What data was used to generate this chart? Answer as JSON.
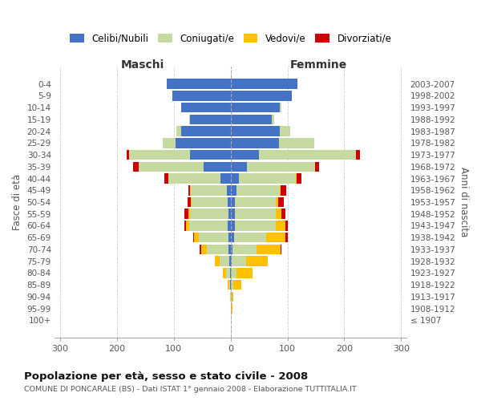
{
  "age_groups": [
    "100+",
    "95-99",
    "90-94",
    "85-89",
    "80-84",
    "75-79",
    "70-74",
    "65-69",
    "60-64",
    "55-59",
    "50-54",
    "45-49",
    "40-44",
    "35-39",
    "30-34",
    "25-29",
    "20-24",
    "15-19",
    "10-14",
    "5-9",
    "0-4"
  ],
  "birth_years": [
    "≤ 1907",
    "1908-1912",
    "1913-1917",
    "1918-1922",
    "1923-1927",
    "1928-1932",
    "1933-1937",
    "1938-1942",
    "1943-1947",
    "1948-1952",
    "1953-1957",
    "1958-1962",
    "1963-1967",
    "1968-1972",
    "1973-1977",
    "1978-1982",
    "1983-1987",
    "1988-1992",
    "1993-1997",
    "1998-2002",
    "2003-2007"
  ],
  "colors": {
    "celibi": "#4472c4",
    "coniugati": "#c5d9a0",
    "vedovi": "#ffc000",
    "divorziati": "#cc0000"
  },
  "males_celibi": [
    0,
    0,
    0,
    1,
    1,
    2,
    4,
    4,
    5,
    4,
    5,
    7,
    18,
    47,
    72,
    97,
    87,
    72,
    87,
    103,
    112
  ],
  "males_coniugati": [
    0,
    0,
    1,
    2,
    7,
    18,
    38,
    52,
    68,
    68,
    63,
    63,
    92,
    115,
    107,
    22,
    8,
    1,
    0,
    0,
    0
  ],
  "males_vedovi": [
    0,
    0,
    0,
    2,
    5,
    8,
    10,
    8,
    5,
    3,
    2,
    1,
    0,
    0,
    0,
    0,
    0,
    0,
    0,
    0,
    0
  ],
  "males_divorziati": [
    0,
    0,
    0,
    0,
    0,
    0,
    2,
    2,
    3,
    6,
    6,
    4,
    7,
    9,
    4,
    0,
    0,
    0,
    0,
    0,
    0
  ],
  "females_celibi": [
    0,
    0,
    0,
    1,
    1,
    2,
    3,
    6,
    7,
    7,
    8,
    10,
    15,
    28,
    50,
    85,
    87,
    72,
    87,
    108,
    118
  ],
  "females_coniugati": [
    0,
    1,
    2,
    4,
    10,
    25,
    42,
    57,
    72,
    73,
    72,
    77,
    100,
    120,
    170,
    62,
    18,
    4,
    2,
    0,
    0
  ],
  "females_vedovi": [
    1,
    2,
    3,
    14,
    28,
    38,
    43,
    33,
    18,
    9,
    4,
    1,
    1,
    0,
    0,
    0,
    0,
    0,
    0,
    0,
    0
  ],
  "females_divorziati": [
    0,
    0,
    0,
    0,
    0,
    0,
    2,
    4,
    4,
    7,
    9,
    10,
    8,
    7,
    7,
    0,
    0,
    0,
    0,
    0,
    0
  ],
  "title": "Popolazione per età, sesso e stato civile - 2008",
  "subtitle": "COMUNE DI PONCARALE (BS) - Dati ISTAT 1° gennaio 2008 - Elaborazione TUTTITALIA.IT",
  "label_maschi": "Maschi",
  "label_femmine": "Femmine",
  "ylabel_left": "Fasce di età",
  "ylabel_right": "Anni di nascita",
  "legend_labels": [
    "Celibi/Nubili",
    "Coniugati/e",
    "Vedovi/e",
    "Divorziati/e"
  ],
  "background_color": "#ffffff",
  "grid_color": "#cccccc",
  "xlim": 310
}
